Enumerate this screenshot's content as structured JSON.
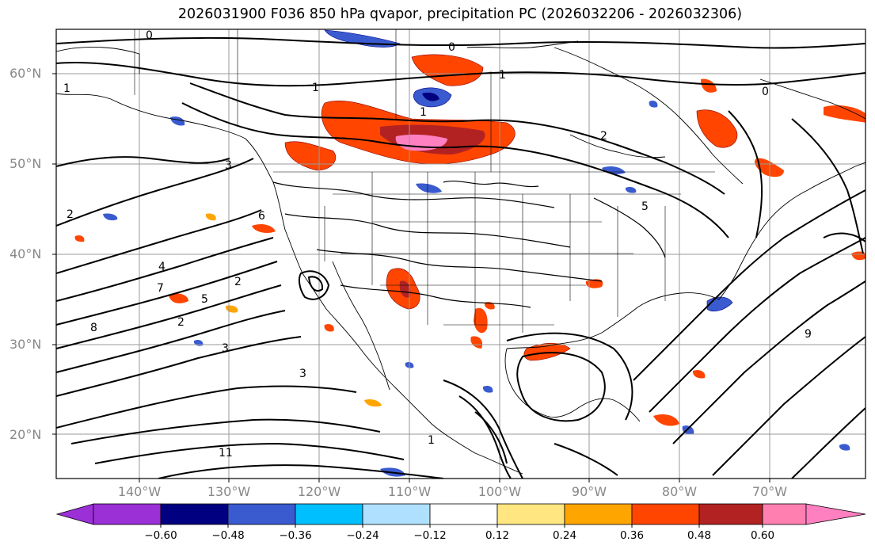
{
  "title": "2026031900 F036 850 hPa qvapor, precipitation PC (2026032206 - 2026032306)",
  "map": {
    "lat_labels": [
      "60°N",
      "50°N",
      "40°N",
      "30°N",
      "20°N"
    ],
    "lon_labels": [
      "140°W",
      "130°W",
      "120°W",
      "110°W",
      "100°W",
      "90°W",
      "80°W",
      "70°W"
    ],
    "contour_labels": [
      "0",
      "0",
      "0",
      "1",
      "1",
      "1",
      "1",
      "1",
      "2",
      "2",
      "2",
      "2",
      "3",
      "3",
      "3",
      "4",
      "5",
      "5",
      "6",
      "7",
      "8",
      "9",
      "11"
    ]
  },
  "colorbar": {
    "tick_labels": [
      "−0.60",
      "−0.48",
      "−0.36",
      "−0.24",
      "−0.12",
      "0.12",
      "0.24",
      "0.36",
      "0.48",
      "0.60"
    ],
    "colors": [
      "#9b30d6",
      "#000080",
      "#3a5bd0",
      "#00bfff",
      "#b0e0ff",
      "#ffffff",
      "#ffe680",
      "#ffa500",
      "#ff4500",
      "#b22222",
      "#ff80b0",
      "#ff80c0"
    ]
  }
}
